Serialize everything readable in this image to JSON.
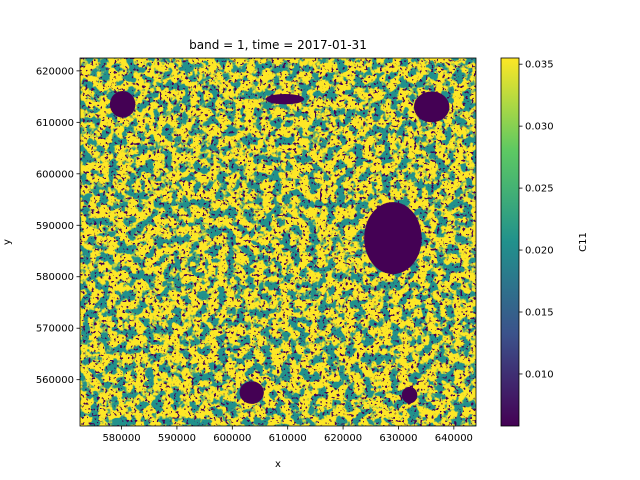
{
  "chart_data": {
    "type": "heatmap",
    "title": "band = 1, time = 2017-01-31",
    "xlabel": "x",
    "ylabel": "y",
    "xlim": [
      572500,
      644000
    ],
    "ylim": [
      551000,
      622500
    ],
    "xticks": [
      580000,
      590000,
      600000,
      610000,
      620000,
      630000,
      640000
    ],
    "xtick_labels": [
      "580000",
      "590000",
      "600000",
      "610000",
      "620000",
      "630000",
      "640000"
    ],
    "yticks": [
      560000,
      570000,
      580000,
      590000,
      600000,
      610000,
      620000
    ],
    "ytick_labels": [
      "560000",
      "570000",
      "580000",
      "590000",
      "600000",
      "610000",
      "620000"
    ],
    "colorbar": {
      "label": "C11",
      "colormap": "viridis",
      "range": [
        0.0058,
        0.0355
      ],
      "ticks": [
        0.01,
        0.015,
        0.02,
        0.025,
        0.03,
        0.035
      ],
      "tick_labels": [
        "0.010",
        "0.015",
        "0.020",
        "0.025",
        "0.030",
        "0.035"
      ],
      "colors": [
        "#440154",
        "#3b528b",
        "#21918c",
        "#5ec962",
        "#fde725"
      ]
    },
    "grid": false,
    "dark_features": [
      {
        "x": 629000,
        "y": 587500,
        "rx": 5200,
        "ry": 7000
      },
      {
        "x": 580200,
        "y": 613500,
        "rx": 2300,
        "ry": 2600
      },
      {
        "x": 636000,
        "y": 613000,
        "rx": 3200,
        "ry": 3000
      },
      {
        "x": 603500,
        "y": 557500,
        "rx": 2200,
        "ry": 2200
      },
      {
        "x": 632000,
        "y": 557000,
        "rx": 1400,
        "ry": 1600
      },
      {
        "x": 609500,
        "y": 614500,
        "rx": 3500,
        "ry": 1000
      }
    ]
  }
}
